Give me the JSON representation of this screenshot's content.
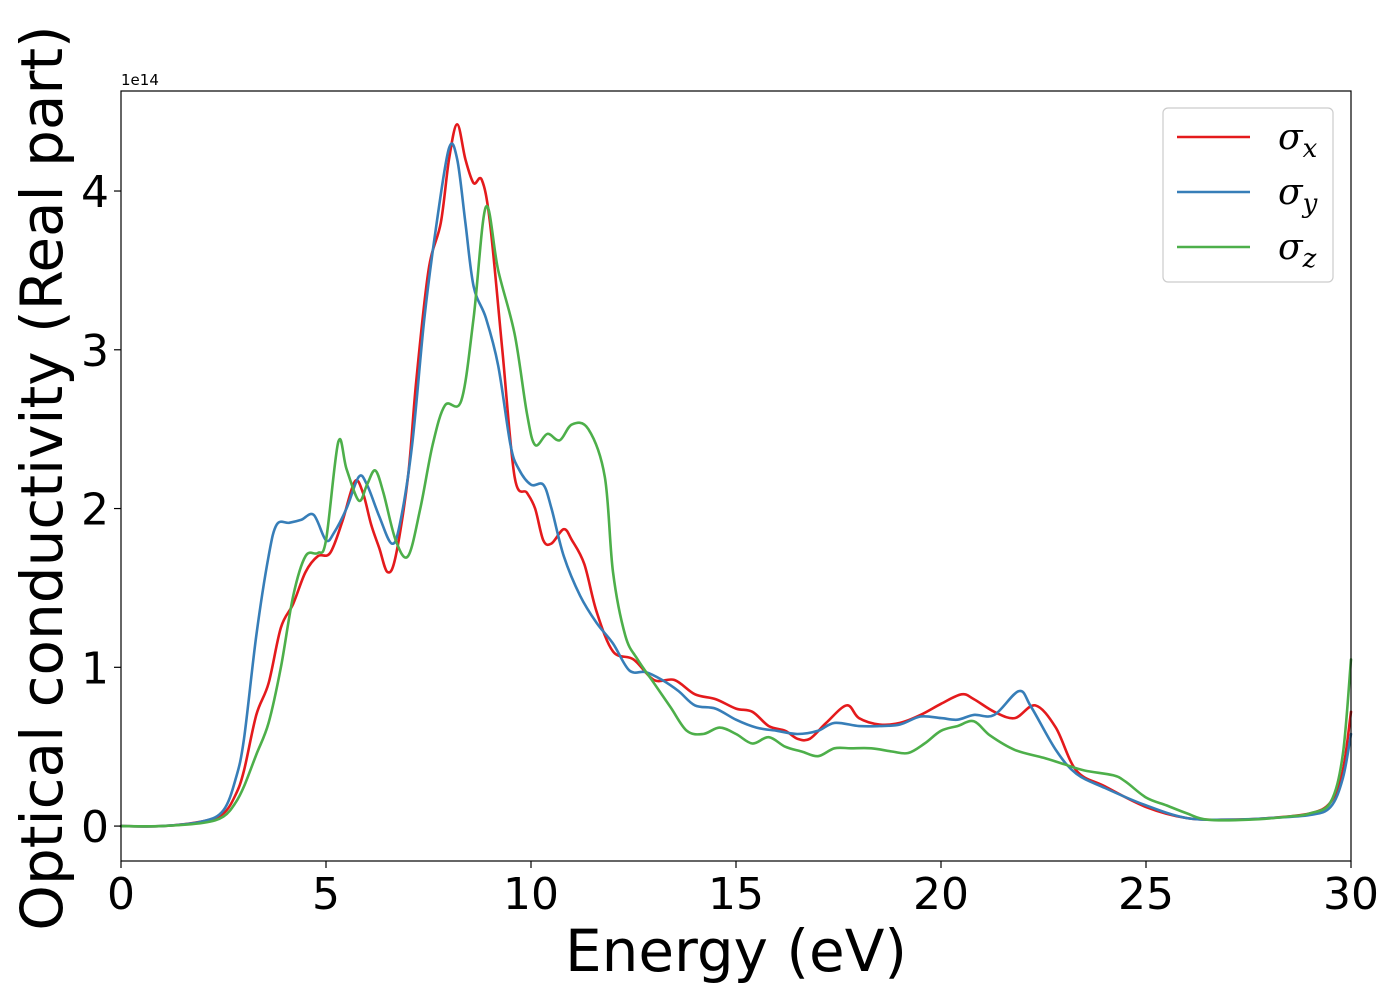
{
  "chart_data": {
    "type": "line",
    "title": "",
    "xlabel": "Energy (eV)",
    "ylabel": "Optical conductivity (Real part)",
    "y_offset_label": "1e14",
    "xlim": [
      0,
      30
    ],
    "ylim": [
      -0.22,
      4.63
    ],
    "x_ticks": [
      0,
      5,
      10,
      15,
      20,
      25,
      30
    ],
    "x_tick_labels": [
      "0",
      "5",
      "10",
      "15",
      "20",
      "25",
      "30"
    ],
    "y_ticks": [
      0,
      1,
      2,
      3,
      4
    ],
    "y_tick_labels": [
      "0",
      "1",
      "2",
      "3",
      "4"
    ],
    "grid": false,
    "legend_position": "top-right",
    "series": [
      {
        "name": "σx",
        "symbol": "σ",
        "subscript": "x",
        "color": "#e41a1c",
        "points": [
          [
            0,
            0
          ],
          [
            1,
            0
          ],
          [
            2,
            0.03
          ],
          [
            2.5,
            0.08
          ],
          [
            2.8,
            0.2
          ],
          [
            3.0,
            0.35
          ],
          [
            3.3,
            0.7
          ],
          [
            3.6,
            0.9
          ],
          [
            3.9,
            1.25
          ],
          [
            4.2,
            1.4
          ],
          [
            4.5,
            1.6
          ],
          [
            4.8,
            1.7
          ],
          [
            5.1,
            1.72
          ],
          [
            5.4,
            1.92
          ],
          [
            5.7,
            2.17
          ],
          [
            5.9,
            2.1
          ],
          [
            6.1,
            1.9
          ],
          [
            6.3,
            1.75
          ],
          [
            6.5,
            1.6
          ],
          [
            6.7,
            1.7
          ],
          [
            7.0,
            2.2
          ],
          [
            7.2,
            2.8
          ],
          [
            7.5,
            3.5
          ],
          [
            7.8,
            3.8
          ],
          [
            8.0,
            4.2
          ],
          [
            8.2,
            4.42
          ],
          [
            8.4,
            4.2
          ],
          [
            8.6,
            4.05
          ],
          [
            8.8,
            4.07
          ],
          [
            9.0,
            3.8
          ],
          [
            9.3,
            3.0
          ],
          [
            9.6,
            2.2
          ],
          [
            9.9,
            2.1
          ],
          [
            10.1,
            2.0
          ],
          [
            10.3,
            1.8
          ],
          [
            10.5,
            1.78
          ],
          [
            10.8,
            1.87
          ],
          [
            11.0,
            1.8
          ],
          [
            11.3,
            1.65
          ],
          [
            11.6,
            1.35
          ],
          [
            12.0,
            1.1
          ],
          [
            12.5,
            1.05
          ],
          [
            13.0,
            0.92
          ],
          [
            13.5,
            0.92
          ],
          [
            14.0,
            0.83
          ],
          [
            14.5,
            0.8
          ],
          [
            15.0,
            0.74
          ],
          [
            15.4,
            0.72
          ],
          [
            15.8,
            0.63
          ],
          [
            16.2,
            0.6
          ],
          [
            16.5,
            0.55
          ],
          [
            16.8,
            0.55
          ],
          [
            17.2,
            0.65
          ],
          [
            17.7,
            0.76
          ],
          [
            18.0,
            0.68
          ],
          [
            18.5,
            0.64
          ],
          [
            19.0,
            0.65
          ],
          [
            19.5,
            0.7
          ],
          [
            20.0,
            0.77
          ],
          [
            20.5,
            0.83
          ],
          [
            20.8,
            0.8
          ],
          [
            21.3,
            0.72
          ],
          [
            21.8,
            0.68
          ],
          [
            22.3,
            0.76
          ],
          [
            22.8,
            0.62
          ],
          [
            23.3,
            0.35
          ],
          [
            24.0,
            0.25
          ],
          [
            25.0,
            0.12
          ],
          [
            26.0,
            0.05
          ],
          [
            27.0,
            0.04
          ],
          [
            28.0,
            0.05
          ],
          [
            29.0,
            0.08
          ],
          [
            29.5,
            0.15
          ],
          [
            29.8,
            0.35
          ],
          [
            30.0,
            0.72
          ]
        ]
      },
      {
        "name": "σy",
        "symbol": "σ",
        "subscript": "y",
        "color": "#377eb8",
        "points": [
          [
            0,
            0
          ],
          [
            1,
            0
          ],
          [
            2,
            0.03
          ],
          [
            2.5,
            0.1
          ],
          [
            2.8,
            0.3
          ],
          [
            3.0,
            0.55
          ],
          [
            3.3,
            1.2
          ],
          [
            3.6,
            1.7
          ],
          [
            3.8,
            1.9
          ],
          [
            4.1,
            1.91
          ],
          [
            4.4,
            1.93
          ],
          [
            4.7,
            1.96
          ],
          [
            5.0,
            1.8
          ],
          [
            5.2,
            1.85
          ],
          [
            5.5,
            2.0
          ],
          [
            5.8,
            2.2
          ],
          [
            6.0,
            2.15
          ],
          [
            6.3,
            1.95
          ],
          [
            6.6,
            1.78
          ],
          [
            6.8,
            1.9
          ],
          [
            7.1,
            2.4
          ],
          [
            7.4,
            3.2
          ],
          [
            7.7,
            3.8
          ],
          [
            8.0,
            4.27
          ],
          [
            8.2,
            4.2
          ],
          [
            8.4,
            3.8
          ],
          [
            8.6,
            3.4
          ],
          [
            8.9,
            3.2
          ],
          [
            9.2,
            2.9
          ],
          [
            9.5,
            2.4
          ],
          [
            9.7,
            2.25
          ],
          [
            10.0,
            2.15
          ],
          [
            10.3,
            2.15
          ],
          [
            10.5,
            2.0
          ],
          [
            10.8,
            1.7
          ],
          [
            11.2,
            1.45
          ],
          [
            11.6,
            1.28
          ],
          [
            12.0,
            1.15
          ],
          [
            12.4,
            0.98
          ],
          [
            12.8,
            0.97
          ],
          [
            13.2,
            0.92
          ],
          [
            13.6,
            0.85
          ],
          [
            14.0,
            0.76
          ],
          [
            14.5,
            0.74
          ],
          [
            15.0,
            0.67
          ],
          [
            15.5,
            0.62
          ],
          [
            16.0,
            0.6
          ],
          [
            16.5,
            0.58
          ],
          [
            17.0,
            0.6
          ],
          [
            17.4,
            0.65
          ],
          [
            18.0,
            0.63
          ],
          [
            18.5,
            0.63
          ],
          [
            19.0,
            0.64
          ],
          [
            19.5,
            0.69
          ],
          [
            20.0,
            0.68
          ],
          [
            20.4,
            0.67
          ],
          [
            20.8,
            0.7
          ],
          [
            21.3,
            0.7
          ],
          [
            21.9,
            0.85
          ],
          [
            22.2,
            0.75
          ],
          [
            22.8,
            0.48
          ],
          [
            23.3,
            0.33
          ],
          [
            24.0,
            0.24
          ],
          [
            25.0,
            0.13
          ],
          [
            26.0,
            0.05
          ],
          [
            27.0,
            0.04
          ],
          [
            28.0,
            0.05
          ],
          [
            29.0,
            0.07
          ],
          [
            29.5,
            0.12
          ],
          [
            29.8,
            0.3
          ],
          [
            30.0,
            0.58
          ]
        ]
      },
      {
        "name": "σz",
        "symbol": "σ",
        "subscript": "z",
        "color": "#4daf4a",
        "points": [
          [
            0,
            0
          ],
          [
            1,
            0
          ],
          [
            2,
            0.02
          ],
          [
            2.5,
            0.06
          ],
          [
            2.8,
            0.15
          ],
          [
            3.0,
            0.25
          ],
          [
            3.3,
            0.45
          ],
          [
            3.6,
            0.65
          ],
          [
            3.9,
            1.0
          ],
          [
            4.2,
            1.45
          ],
          [
            4.5,
            1.7
          ],
          [
            4.8,
            1.72
          ],
          [
            5.0,
            1.8
          ],
          [
            5.3,
            2.42
          ],
          [
            5.5,
            2.25
          ],
          [
            5.8,
            2.05
          ],
          [
            6.0,
            2.15
          ],
          [
            6.2,
            2.24
          ],
          [
            6.4,
            2.1
          ],
          [
            6.7,
            1.8
          ],
          [
            7.0,
            1.7
          ],
          [
            7.3,
            2.0
          ],
          [
            7.6,
            2.4
          ],
          [
            7.9,
            2.65
          ],
          [
            8.3,
            2.68
          ],
          [
            8.6,
            3.2
          ],
          [
            8.9,
            3.9
          ],
          [
            9.2,
            3.5
          ],
          [
            9.6,
            3.1
          ],
          [
            9.9,
            2.6
          ],
          [
            10.1,
            2.4
          ],
          [
            10.4,
            2.47
          ],
          [
            10.7,
            2.43
          ],
          [
            11.0,
            2.53
          ],
          [
            11.4,
            2.5
          ],
          [
            11.8,
            2.2
          ],
          [
            12.0,
            1.6
          ],
          [
            12.3,
            1.2
          ],
          [
            12.6,
            1.05
          ],
          [
            13.0,
            0.9
          ],
          [
            13.4,
            0.75
          ],
          [
            13.8,
            0.6
          ],
          [
            14.2,
            0.58
          ],
          [
            14.6,
            0.62
          ],
          [
            15.0,
            0.58
          ],
          [
            15.4,
            0.52
          ],
          [
            15.8,
            0.56
          ],
          [
            16.2,
            0.5
          ],
          [
            16.6,
            0.47
          ],
          [
            17.0,
            0.44
          ],
          [
            17.4,
            0.49
          ],
          [
            17.8,
            0.49
          ],
          [
            18.3,
            0.49
          ],
          [
            18.8,
            0.47
          ],
          [
            19.2,
            0.46
          ],
          [
            19.6,
            0.52
          ],
          [
            20.0,
            0.6
          ],
          [
            20.4,
            0.63
          ],
          [
            20.8,
            0.66
          ],
          [
            21.2,
            0.57
          ],
          [
            21.8,
            0.48
          ],
          [
            22.5,
            0.43
          ],
          [
            23.0,
            0.39
          ],
          [
            23.5,
            0.35
          ],
          [
            24.2,
            0.32
          ],
          [
            24.5,
            0.28
          ],
          [
            25.0,
            0.18
          ],
          [
            25.5,
            0.13
          ],
          [
            26.0,
            0.08
          ],
          [
            26.5,
            0.04
          ],
          [
            27.5,
            0.04
          ],
          [
            28.5,
            0.06
          ],
          [
            29.0,
            0.08
          ],
          [
            29.5,
            0.15
          ],
          [
            29.8,
            0.45
          ],
          [
            30.0,
            1.05
          ]
        ]
      }
    ]
  }
}
